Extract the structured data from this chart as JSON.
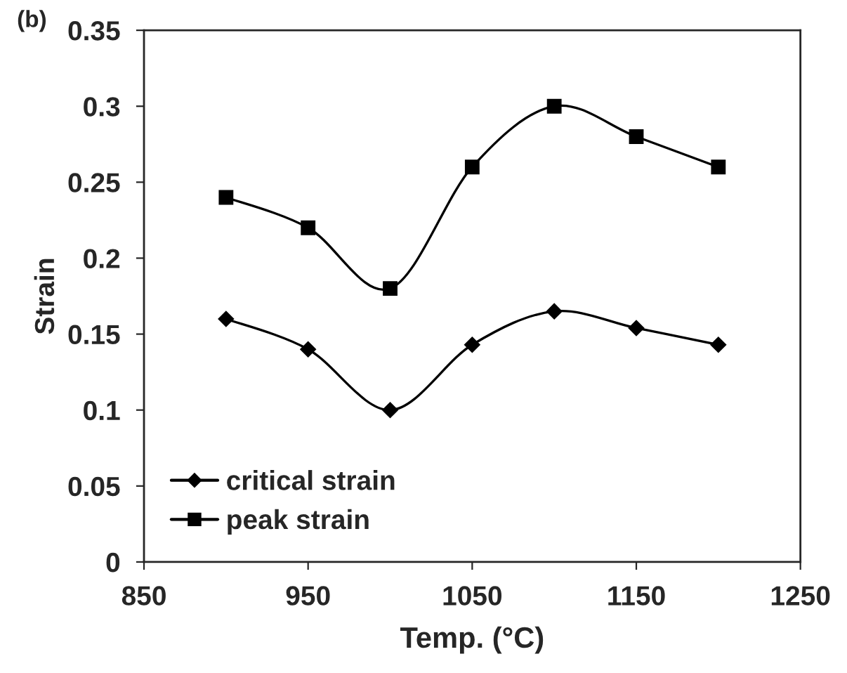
{
  "chart_data": {
    "type": "line",
    "xlabel": "Temp. (°C)",
    "ylabel": "Strain",
    "annotations": [
      "(b)"
    ],
    "x": [
      900,
      950,
      1000,
      1050,
      1100,
      1150,
      1200
    ],
    "series": [
      {
        "name": "critical strain",
        "color": "#000000",
        "marker": "diamond",
        "values": [
          0.16,
          0.14,
          0.1,
          0.143,
          0.165,
          0.154,
          0.143
        ]
      },
      {
        "name": "peak strain",
        "color": "#000000",
        "marker": "square",
        "values": [
          0.24,
          0.22,
          0.18,
          0.26,
          0.3,
          0.28,
          0.26
        ]
      }
    ],
    "xlim": [
      850,
      1250
    ],
    "xticks": [
      850,
      950,
      1050,
      1150,
      1250
    ],
    "ylim": [
      0,
      0.35
    ],
    "yticks": [
      0,
      0.05,
      0.1,
      0.15,
      0.2,
      0.25,
      0.3,
      0.35
    ],
    "grid": false,
    "legend": "bottom left",
    "line_style": "solid"
  }
}
